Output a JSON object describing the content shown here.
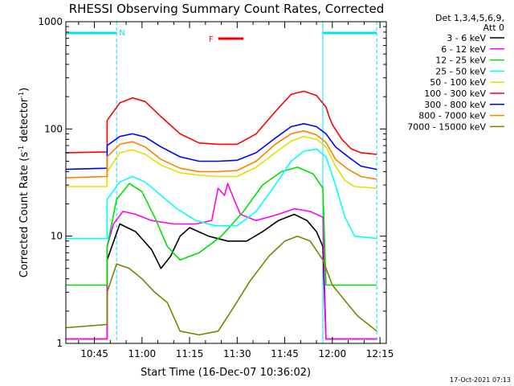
{
  "chart_data": {
    "type": "line",
    "title": "RHESSI Observing Summary Count Rates, Corrected",
    "xlabel": "Start Time (16-Dec-07 10:36:02)",
    "ylabel_main": "Corrected Count Rate (s",
    "ylabel_sup1": "-1",
    "ylabel_mid": " detector",
    "ylabel_sup2": "-1",
    "ylabel_end": ")",
    "y_scale": "log",
    "ylim": [
      1,
      1000
    ],
    "xlim": [
      "10:36",
      "12:17"
    ],
    "x_ticks": [
      "10:45",
      "11:00",
      "11:15",
      "11:30",
      "11:45",
      "12:00",
      "12:15"
    ],
    "y_ticks": [
      "1",
      "10",
      "100",
      "1000"
    ],
    "detector_header": "Det 1,3,4,5,6,9,",
    "attenuator_header": "Att 0",
    "flag_labels": {
      "night": "N",
      "flare": "F"
    },
    "night_intervals": [
      [
        "10:36",
        "10:52"
      ],
      [
        "11:57",
        "12:14"
      ]
    ],
    "flare_interval": [
      "11:24",
      "11:32"
    ],
    "timestamp": "17-Oct-2021 07:13",
    "series": [
      {
        "name": "3 - 6 keV",
        "color": "#000000",
        "points": [
          [
            "10:36",
            1.1
          ],
          [
            "10:49",
            1.1
          ],
          [
            "10:49",
            6
          ],
          [
            "10:53",
            13
          ],
          [
            "10:58",
            11
          ],
          [
            "11:03",
            7.5
          ],
          [
            "11:06",
            5
          ],
          [
            "11:09",
            6.5
          ],
          [
            "11:12",
            10
          ],
          [
            "11:15",
            12
          ],
          [
            "11:21",
            10
          ],
          [
            "11:27",
            9
          ],
          [
            "11:33",
            9
          ],
          [
            "11:38",
            11
          ],
          [
            "11:43",
            14
          ],
          [
            "11:48",
            16
          ],
          [
            "11:52",
            14
          ],
          [
            "11:55",
            11
          ],
          [
            "11:57",
            8
          ],
          [
            "11:58",
            1.1
          ],
          [
            "12:14",
            1.1
          ]
        ]
      },
      {
        "name": "6 - 12 keV",
        "color": "#ff00ff",
        "points": [
          [
            "10:36",
            1.1
          ],
          [
            "10:49",
            1.1
          ],
          [
            "10:49",
            8
          ],
          [
            "10:51",
            13
          ],
          [
            "10:54",
            17
          ],
          [
            "10:58",
            16
          ],
          [
            "11:03",
            14
          ],
          [
            "11:10",
            13
          ],
          [
            "11:17",
            13
          ],
          [
            "11:22",
            14
          ],
          [
            "11:24",
            28
          ],
          [
            "11:26",
            24
          ],
          [
            "11:27",
            31
          ],
          [
            "11:29",
            22
          ],
          [
            "11:31",
            16
          ],
          [
            "11:36",
            14
          ],
          [
            "11:43",
            16
          ],
          [
            "11:48",
            18
          ],
          [
            "11:53",
            17
          ],
          [
            "11:57",
            15
          ],
          [
            "11:58",
            1.1
          ],
          [
            "12:14",
            1.1
          ]
        ]
      },
      {
        "name": "12 - 25 keV",
        "color": "#00e000",
        "points": [
          [
            "10:36",
            3.5
          ],
          [
            "10:49",
            3.5
          ],
          [
            "10:49",
            8
          ],
          [
            "10:52",
            22
          ],
          [
            "10:56",
            31
          ],
          [
            "11:00",
            26
          ],
          [
            "11:04",
            15
          ],
          [
            "11:08",
            8
          ],
          [
            "11:12",
            6
          ],
          [
            "11:18",
            7
          ],
          [
            "11:25",
            10
          ],
          [
            "11:32",
            17
          ],
          [
            "11:38",
            30
          ],
          [
            "11:44",
            40
          ],
          [
            "11:49",
            44
          ],
          [
            "11:54",
            38
          ],
          [
            "11:57",
            28
          ],
          [
            "11:58",
            3.5
          ],
          [
            "12:14",
            3.5
          ]
        ]
      },
      {
        "name": "25 - 50 keV",
        "color": "#00ffff",
        "points": [
          [
            "10:36",
            9.5
          ],
          [
            "10:49",
            9.5
          ],
          [
            "10:49",
            22
          ],
          [
            "10:53",
            32
          ],
          [
            "10:57",
            36
          ],
          [
            "11:01",
            32
          ],
          [
            "11:06",
            24
          ],
          [
            "11:11",
            18
          ],
          [
            "11:17",
            14
          ],
          [
            "11:23",
            12.5
          ],
          [
            "11:30",
            12.5
          ],
          [
            "11:36",
            17
          ],
          [
            "11:42",
            30
          ],
          [
            "11:47",
            50
          ],
          [
            "11:51",
            62
          ],
          [
            "11:55",
            65
          ],
          [
            "11:58",
            55
          ],
          [
            "12:01",
            30
          ],
          [
            "12:04",
            15
          ],
          [
            "12:07",
            10
          ],
          [
            "12:14",
            9.5
          ]
        ]
      },
      {
        "name": "50 - 100 keV",
        "color": "#e0e000",
        "points": [
          [
            "10:36",
            29
          ],
          [
            "10:49",
            29
          ],
          [
            "10:49",
            40
          ],
          [
            "10:53",
            60
          ],
          [
            "10:57",
            64
          ],
          [
            "11:01",
            58
          ],
          [
            "11:06",
            46
          ],
          [
            "11:12",
            39
          ],
          [
            "11:18",
            37
          ],
          [
            "11:24",
            36
          ],
          [
            "11:30",
            36
          ],
          [
            "11:36",
            44
          ],
          [
            "11:42",
            60
          ],
          [
            "11:47",
            77
          ],
          [
            "11:51",
            85
          ],
          [
            "11:55",
            80
          ],
          [
            "11:58",
            68
          ],
          [
            "12:01",
            45
          ],
          [
            "12:04",
            33
          ],
          [
            "12:07",
            29
          ],
          [
            "12:14",
            28
          ]
        ]
      },
      {
        "name": "100 - 300 keV",
        "color": "#ff0000",
        "points": [
          [
            "10:36",
            60
          ],
          [
            "10:49",
            61
          ],
          [
            "10:49",
            120
          ],
          [
            "10:53",
            175
          ],
          [
            "10:57",
            195
          ],
          [
            "11:01",
            180
          ],
          [
            "11:06",
            130
          ],
          [
            "11:12",
            90
          ],
          [
            "11:18",
            74
          ],
          [
            "11:24",
            72
          ],
          [
            "11:30",
            72
          ],
          [
            "11:36",
            90
          ],
          [
            "11:42",
            145
          ],
          [
            "11:47",
            210
          ],
          [
            "11:51",
            225
          ],
          [
            "11:55",
            205
          ],
          [
            "11:58",
            160
          ],
          [
            "11:59",
            130
          ],
          [
            "12:00",
            110
          ],
          [
            "12:03",
            80
          ],
          [
            "12:06",
            65
          ],
          [
            "12:09",
            60
          ],
          [
            "12:14",
            58
          ]
        ]
      },
      {
        "name": "300 - 800 keV",
        "color": "#0000ff",
        "points": [
          [
            "10:36",
            42
          ],
          [
            "10:49",
            43
          ],
          [
            "10:49",
            70
          ],
          [
            "10:53",
            85
          ],
          [
            "10:57",
            90
          ],
          [
            "11:01",
            84
          ],
          [
            "11:06",
            68
          ],
          [
            "11:12",
            55
          ],
          [
            "11:18",
            50
          ],
          [
            "11:24",
            50
          ],
          [
            "11:30",
            51
          ],
          [
            "11:36",
            60
          ],
          [
            "11:42",
            82
          ],
          [
            "11:47",
            105
          ],
          [
            "11:51",
            112
          ],
          [
            "11:55",
            105
          ],
          [
            "11:58",
            90
          ],
          [
            "12:01",
            68
          ],
          [
            "12:05",
            55
          ],
          [
            "12:09",
            45
          ],
          [
            "12:14",
            42
          ]
        ]
      },
      {
        "name": "800 - 7000 keV",
        "color": "#ff8000",
        "points": [
          [
            "10:36",
            35
          ],
          [
            "10:49",
            36
          ],
          [
            "10:49",
            55
          ],
          [
            "10:53",
            72
          ],
          [
            "10:57",
            76
          ],
          [
            "11:01",
            68
          ],
          [
            "11:06",
            52
          ],
          [
            "11:12",
            43
          ],
          [
            "11:18",
            40
          ],
          [
            "11:24",
            40
          ],
          [
            "11:30",
            41
          ],
          [
            "11:36",
            50
          ],
          [
            "11:42",
            72
          ],
          [
            "11:47",
            90
          ],
          [
            "11:51",
            96
          ],
          [
            "11:55",
            88
          ],
          [
            "11:58",
            75
          ],
          [
            "12:01",
            52
          ],
          [
            "12:05",
            42
          ],
          [
            "12:09",
            36
          ],
          [
            "12:14",
            34
          ]
        ]
      },
      {
        "name": "7000 - 15000 keV",
        "color": "#808000",
        "points": [
          [
            "10:36",
            1.4
          ],
          [
            "10:49",
            1.5
          ],
          [
            "10:49",
            3
          ],
          [
            "10:52",
            5.5
          ],
          [
            "10:56",
            5
          ],
          [
            "11:00",
            4
          ],
          [
            "11:04",
            3
          ],
          [
            "11:08",
            2.4
          ],
          [
            "11:12",
            1.3
          ],
          [
            "11:18",
            1.2
          ],
          [
            "11:24",
            1.3
          ],
          [
            "11:29",
            2.2
          ],
          [
            "11:34",
            3.8
          ],
          [
            "11:40",
            6.5
          ],
          [
            "11:45",
            9
          ],
          [
            "11:49",
            10
          ],
          [
            "11:53",
            9
          ],
          [
            "11:57",
            6
          ],
          [
            "12:00",
            3.5
          ],
          [
            "12:04",
            2.5
          ],
          [
            "12:08",
            1.8
          ],
          [
            "12:14",
            1.3
          ]
        ]
      }
    ]
  }
}
